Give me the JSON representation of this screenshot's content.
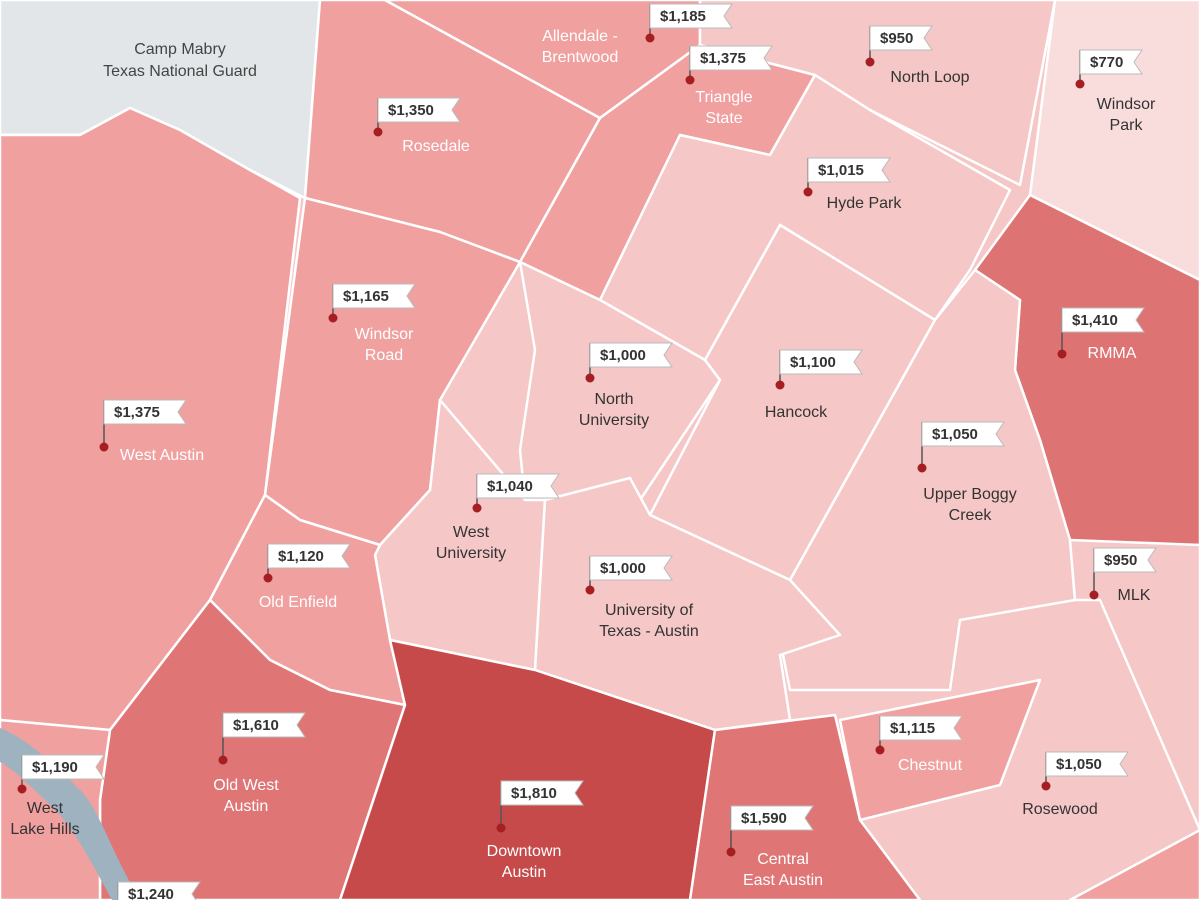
{
  "landmarks": [
    {
      "name": [
        "Camp Mabry",
        "Texas National Guard"
      ]
    }
  ],
  "neighborhoods": [
    {
      "name": [
        "Allendale -",
        "Brentwood"
      ],
      "rent": "$1,185"
    },
    {
      "name": [
        "North Loop"
      ],
      "rent": "$950"
    },
    {
      "name": [
        "Windsor",
        "Park"
      ],
      "rent": "$770"
    },
    {
      "name": [
        "Triangle",
        "State"
      ],
      "rent": "$1,375"
    },
    {
      "name": [
        "Rosedale"
      ],
      "rent": "$1,350"
    },
    {
      "name": [
        "Hyde Park"
      ],
      "rent": "$1,015"
    },
    {
      "name": [
        "Windsor",
        "Road"
      ],
      "rent": "$1,165"
    },
    {
      "name": [
        "RMMA"
      ],
      "rent": "$1,410"
    },
    {
      "name": [
        "North",
        "University"
      ],
      "rent": "$1,000"
    },
    {
      "name": [
        "Hancock"
      ],
      "rent": "$1,100"
    },
    {
      "name": [
        "West Austin"
      ],
      "rent": "$1,375"
    },
    {
      "name": [
        "Upper Boggy",
        "Creek"
      ],
      "rent": "$1,050"
    },
    {
      "name": [
        "West",
        "University"
      ],
      "rent": "$1,040"
    },
    {
      "name": [
        "Old Enfield"
      ],
      "rent": "$1,120"
    },
    {
      "name": [
        "MLK"
      ],
      "rent": "$950"
    },
    {
      "name": [
        "University of",
        "Texas - Austin"
      ],
      "rent": "$1,000"
    },
    {
      "name": [
        "Old West",
        "Austin"
      ],
      "rent": "$1,610"
    },
    {
      "name": [
        "Chestnut"
      ],
      "rent": "$1,115"
    },
    {
      "name": [
        "Rosewood"
      ],
      "rent": "$1,050"
    },
    {
      "name": [
        "West",
        "Lake Hills"
      ],
      "rent": "$1,190"
    },
    {
      "name": [
        "Downtown",
        "Austin"
      ],
      "rent": "$1,810"
    },
    {
      "name": [
        "Central",
        "East Austin"
      ],
      "rent": "$1,590"
    },
    {
      "rent": "$1,240"
    }
  ]
}
